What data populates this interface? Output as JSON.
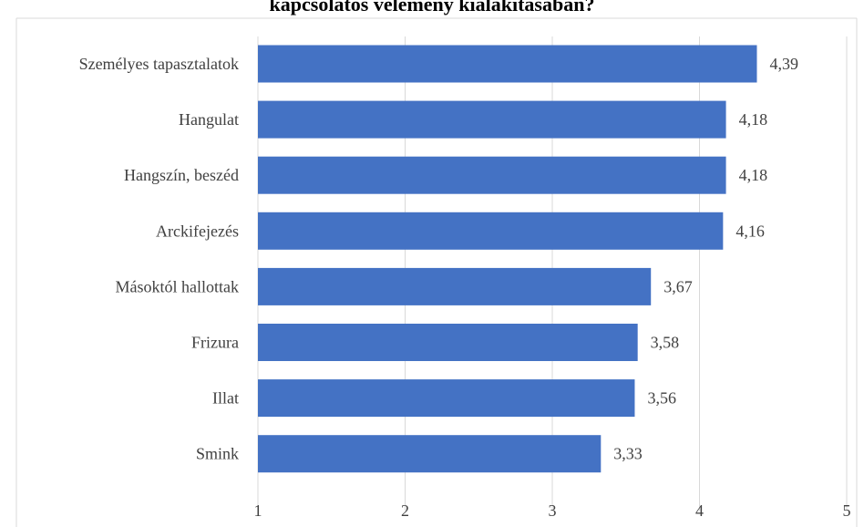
{
  "chart_data": {
    "type": "bar",
    "orientation": "horizontal",
    "title": "kapcsolatos vélemény kialakításában?",
    "categories": [
      "Személyes tapasztalatok",
      "Hangulat",
      "Hangszín, beszéd",
      "Arckifejezés",
      "Másoktól hallottak",
      "Frizura",
      "Illat",
      "Smink"
    ],
    "values": [
      4.39,
      4.18,
      4.18,
      4.16,
      3.67,
      3.58,
      3.56,
      3.33
    ],
    "value_labels": [
      "4,39",
      "4,18",
      "4,18",
      "4,16",
      "3,67",
      "3,58",
      "3,56",
      "3,33"
    ],
    "xlim": [
      1,
      5
    ],
    "ticks": [
      "1",
      "2",
      "3",
      "4",
      "5"
    ],
    "grid": "vertical",
    "bar_color": "#4472c4",
    "grid_color": "#d9d9d9",
    "text_color": "#404040"
  }
}
